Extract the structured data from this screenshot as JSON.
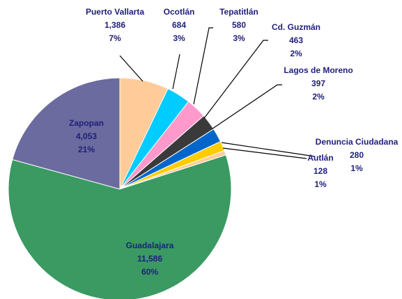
{
  "chart_data": {
    "type": "pie",
    "categories": [
      "Puerto Vallarta",
      "Ocotlán",
      "Tepatitlán",
      "Cd. Guzmán",
      "Lagos de Moreno",
      "Denuncia Ciudadana",
      "Autlán",
      "Guadalajara",
      "Zapopan"
    ],
    "values": [
      1386,
      684,
      580,
      463,
      397,
      280,
      128,
      11586,
      4053
    ],
    "value_labels": [
      "1,386",
      "684",
      "580",
      "463",
      "397",
      "280",
      "128",
      "11,586",
      "4,053"
    ],
    "percent_labels": [
      "7%",
      "3%",
      "3%",
      "2%",
      "2%",
      "1%",
      "1%",
      "60%",
      "21%"
    ],
    "colors": [
      "#ffcc99",
      "#00ccff",
      "#ff99cc",
      "#3a3a3a",
      "#0066cc",
      "#ffcc00",
      "#ffcc99",
      "#3a9a62",
      "#6b6b9f"
    ]
  }
}
